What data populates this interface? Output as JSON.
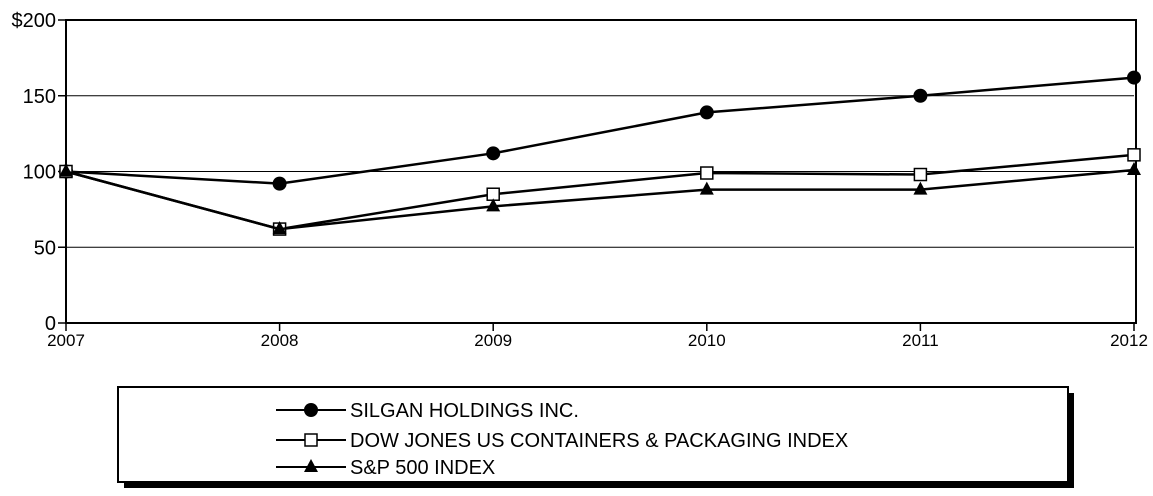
{
  "chart_data": {
    "type": "line",
    "x": [
      "2007",
      "2008",
      "2009",
      "2010",
      "2011",
      "2012"
    ],
    "ylim": [
      0,
      200
    ],
    "yticks": [
      {
        "value": 0,
        "label": "0"
      },
      {
        "value": 50,
        "label": "50"
      },
      {
        "value": 100,
        "label": "100"
      },
      {
        "value": 150,
        "label": "150"
      },
      {
        "value": 200,
        "label": "$200"
      }
    ],
    "grid": true,
    "legend_position": "bottom",
    "series": [
      {
        "name": "SILGAN HOLDINGS INC.",
        "marker": "circle-filled",
        "values": [
          100,
          92,
          112,
          139,
          150,
          162
        ]
      },
      {
        "name": "DOW JONES US CONTAINERS & PACKAGING INDEX",
        "marker": "square-open",
        "values": [
          100,
          62,
          85,
          99,
          98,
          111
        ]
      },
      {
        "name": "S&P 500 INDEX",
        "marker": "triangle-filled",
        "values": [
          100,
          62,
          77,
          88,
          88,
          101
        ]
      }
    ]
  }
}
